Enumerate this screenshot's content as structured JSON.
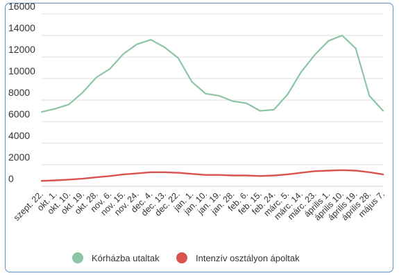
{
  "chart_data": {
    "type": "line",
    "title": "",
    "xlabel": "",
    "ylabel": "",
    "ylim": [
      0,
      16000
    ],
    "yticks": [
      0,
      2000,
      4000,
      6000,
      8000,
      10000,
      12000,
      14000,
      16000
    ],
    "grid": true,
    "legend_position": "bottom",
    "x": [
      "szept. 22.",
      "okt. 1.",
      "okt. 10.",
      "okt. 19.",
      "okt. 28.",
      "nov. 6.",
      "nov. 15.",
      "nov. 24.",
      "dec. 4.",
      "dec. 13.",
      "dec. 22.",
      "jan. 1.",
      "jan. 10.",
      "jan. 19.",
      "jan. 28.",
      "feb. 6.",
      "feb. 15.",
      "feb. 24.",
      "márc. 5.",
      "márc. 14.",
      "márc. 23.",
      "április 1.",
      "április 10.",
      "április 19.",
      "április 28.",
      "május 7."
    ],
    "series": [
      {
        "name": "Kórházba utaltak",
        "color": "#8cc5a3",
        "values": [
          6900,
          7200,
          7600,
          8700,
          10100,
          10900,
          12300,
          13200,
          13600,
          12900,
          11900,
          9700,
          8600,
          8400,
          7900,
          7700,
          7000,
          7100,
          8500,
          10600,
          12200,
          13500,
          14000,
          12800,
          8400,
          7000
        ]
      },
      {
        "name": "Intenzív osztályon ápoltak",
        "color": "#d9534f",
        "values": [
          500,
          550,
          620,
          700,
          830,
          950,
          1100,
          1200,
          1300,
          1300,
          1250,
          1150,
          1050,
          1050,
          1000,
          1000,
          950,
          1000,
          1100,
          1250,
          1400,
          1450,
          1500,
          1450,
          1300,
          1100
        ]
      }
    ]
  }
}
